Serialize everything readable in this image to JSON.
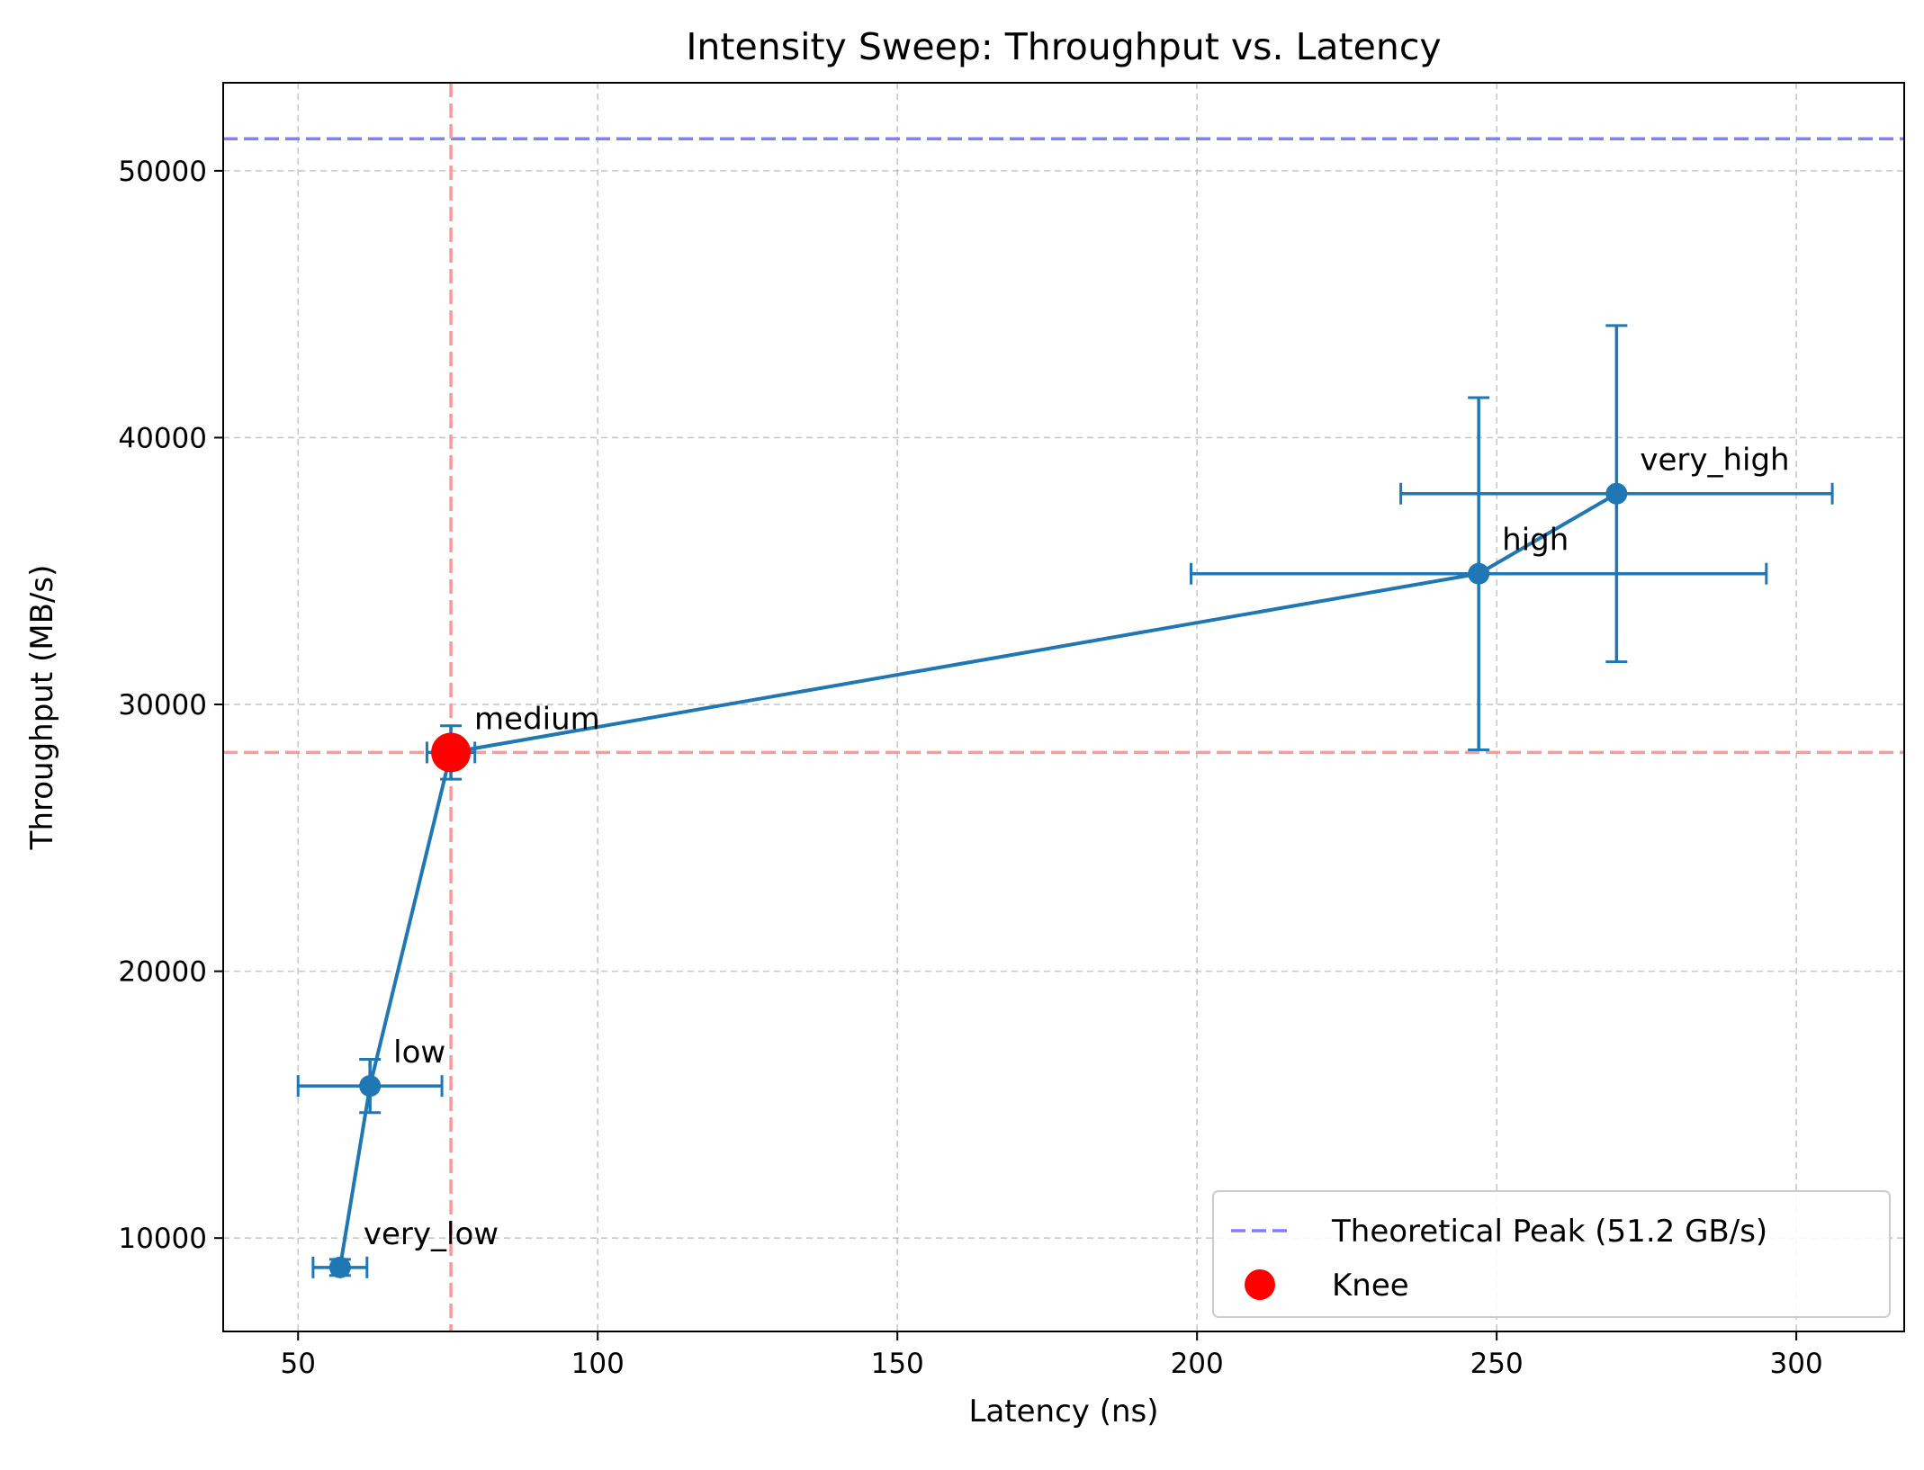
{
  "chart_data": {
    "type": "scatter",
    "title": "Intensity Sweep: Throughput vs. Latency",
    "xlabel": "Latency (ns)",
    "ylabel": "Throughput (MB/s)",
    "xlim": [
      37.5,
      318
    ],
    "ylim": [
      6500,
      53300
    ],
    "xticks": [
      50,
      100,
      150,
      200,
      250,
      300
    ],
    "yticks": [
      10000,
      20000,
      30000,
      40000,
      50000
    ],
    "grid": true,
    "legend_position": "lower-right",
    "series": [
      {
        "x": [
          57,
          62,
          75.5,
          247,
          270
        ],
        "y": [
          8900,
          15700,
          28200,
          34900,
          37900
        ],
        "x_err": [
          4.5,
          12,
          4,
          48,
          36
        ],
        "y_err": [
          300,
          1000,
          1000,
          6600,
          6300
        ],
        "labels": [
          "very_low",
          "low",
          "medium",
          "high",
          "very_high"
        ],
        "color": "#1f77b4"
      }
    ],
    "reference_lines": {
      "peak": {
        "y": 51200,
        "label": "Theoretical Peak (51.2 GB/s)",
        "color": "#7f7fff"
      },
      "knee_v": {
        "x": 75.5,
        "color": "#ff9999"
      },
      "knee_h": {
        "y": 28200,
        "color": "#ff9999"
      }
    },
    "knee": {
      "x": 75.5,
      "y": 28200,
      "label": "Knee",
      "color": "#ff0000"
    },
    "legend": [
      "Theoretical Peak (51.2 GB/s)",
      "Knee"
    ]
  }
}
